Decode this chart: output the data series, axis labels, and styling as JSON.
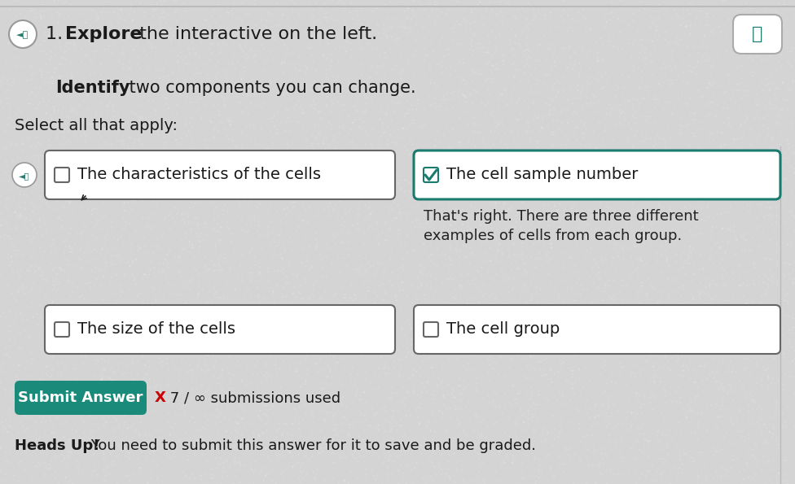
{
  "bg_color": "#d4d4d4",
  "font_color": "#1a1a1a",
  "feedback_color": "#222222",
  "box_bg": "#ffffff",
  "box_border_color": "#666666",
  "checked_box_border": "#1a7a6e",
  "check_color": "#1a7a6e",
  "top_border_color": "#bbbbbb",
  "submit_bg": "#1a8a7a",
  "submit_text_color": "#ffffff",
  "submissions_x_color": "#cc0000",
  "option1": "The characteristics of the cells",
  "option2": "The cell sample number",
  "feedback_line1": "That's right. There are three different",
  "feedback_line2": "examples of cells from each group.",
  "option3": "The size of the cells",
  "option4": "The cell group",
  "submit_label": "Submit Answer",
  "submissions_text": " 7 / ∞ submissions used",
  "heads_up_bold": "Heads Up!",
  "heads_up_rest": " You need to submit this answer for it to save and be graded.",
  "select_label": "Select all that apply:",
  "title_num": "1.",
  "title_bold": "Explore",
  "title_rest": " the interactive on the left.",
  "subtitle_bold": "Identify",
  "subtitle_rest": " two components you can change."
}
